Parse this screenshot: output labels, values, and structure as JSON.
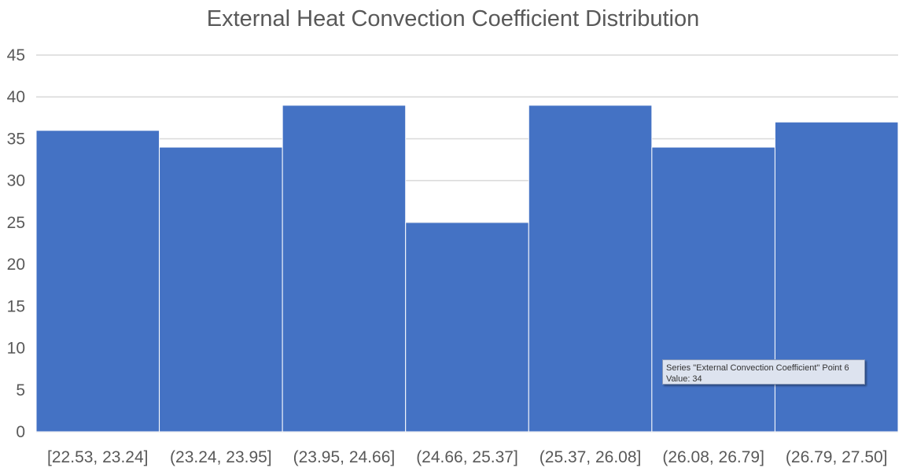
{
  "chart_data": {
    "type": "bar",
    "title": "External Heat Convection Coefficient Distribution",
    "categories": [
      "[22.53, 23.24]",
      "(23.24, 23.95]",
      "(23.95, 24.66]",
      "(24.66, 25.37]",
      "(25.37, 26.08]",
      "(26.08, 26.79]",
      "(26.79, 27.50]"
    ],
    "series": [
      {
        "values": [
          36,
          34,
          39,
          25,
          39,
          34,
          37
        ]
      }
    ],
    "xlabel": "",
    "ylabel": "",
    "ylim": [
      0,
      45
    ],
    "yticks": [
      0,
      5,
      10,
      15,
      20,
      25,
      30,
      35,
      40,
      45
    ],
    "grid": true,
    "bar_color": "#4472c4",
    "grid_color": "#d9d9d9"
  },
  "tooltip": {
    "line1": "Series \"External Convection Coefficient\" Point 6",
    "line2": "Value: 34"
  }
}
